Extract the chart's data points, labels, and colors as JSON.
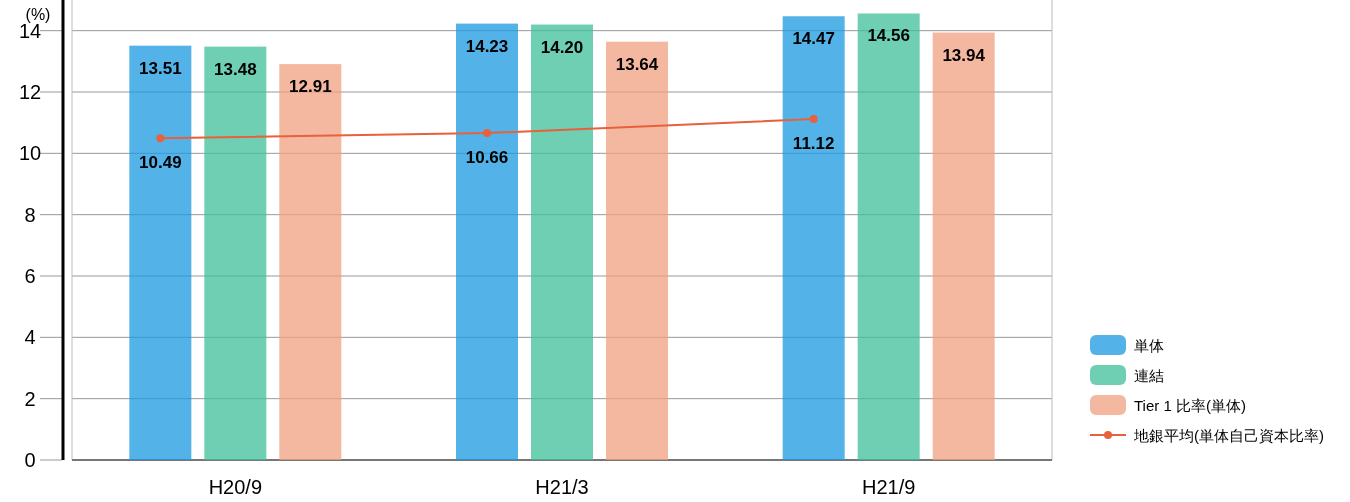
{
  "chart_data": {
    "type": "bar",
    "ylabel": "(%)",
    "categories": [
      "H20/9",
      "H21/3",
      "H21/9"
    ],
    "series": [
      {
        "name": "単体",
        "color": "#1a9ae0",
        "values": [
          13.51,
          14.23,
          14.47
        ],
        "value_labels": [
          "13.51",
          "14.23",
          "14.47"
        ]
      },
      {
        "name": "連結",
        "color": "#3dbf9a",
        "values": [
          13.48,
          14.2,
          14.56
        ],
        "value_labels": [
          "13.48",
          "14.20",
          "14.56"
        ]
      },
      {
        "name": "Tier 1 比率(単体)",
        "color": "#f0a080",
        "values": [
          12.91,
          13.64,
          13.94
        ],
        "value_labels": [
          "12.91",
          "13.64",
          "13.94"
        ]
      },
      {
        "name": "地銀平均(単体自己資本比率)",
        "type": "line",
        "color": "#e8603c",
        "values": [
          10.49,
          10.66,
          11.12
        ],
        "value_labels": [
          "10.49",
          "10.66",
          "11.12"
        ]
      }
    ],
    "ylim": [
      0,
      15
    ],
    "yticks": [
      0,
      2,
      4,
      6,
      8,
      10,
      12,
      14
    ],
    "grid": "y",
    "legend": "bottom right",
    "marker": "circle"
  }
}
